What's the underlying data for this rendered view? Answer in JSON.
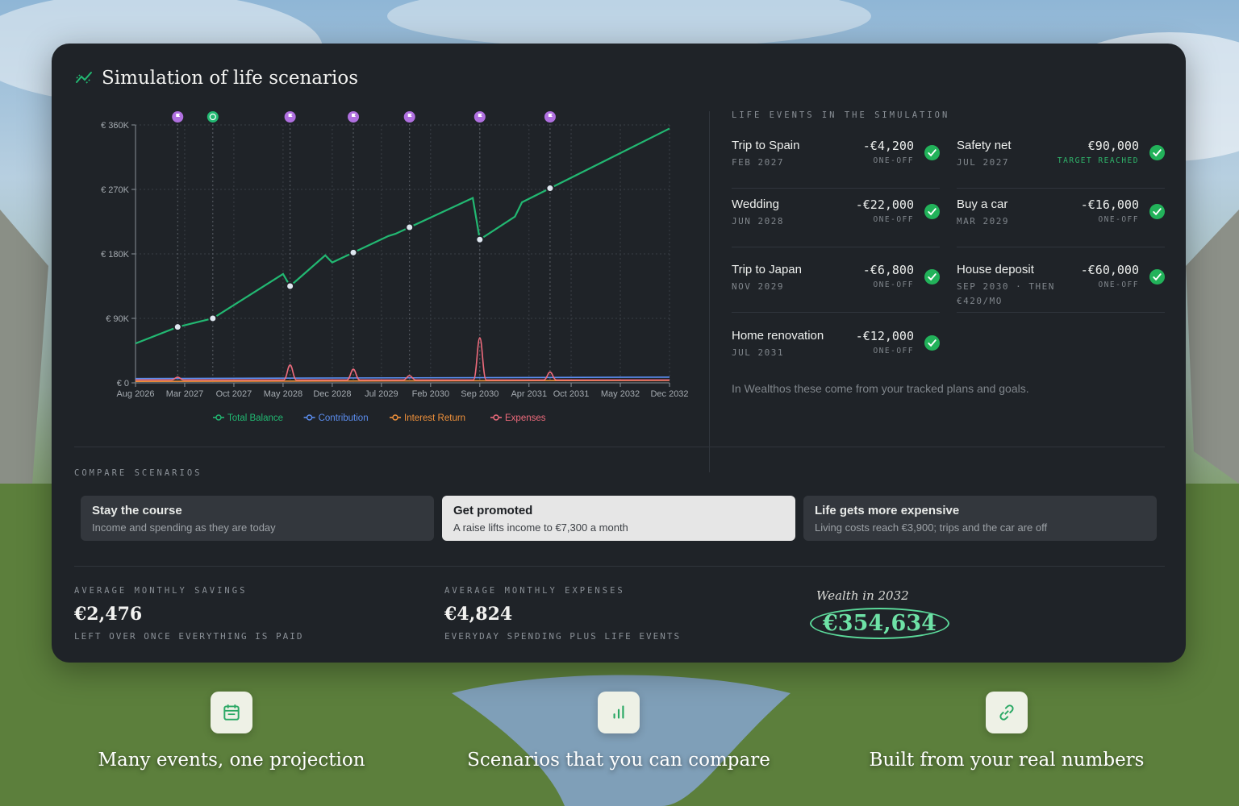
{
  "colors": {
    "total_balance": "#22b872",
    "contribution": "#5b8def",
    "interest_return": "#f0913a",
    "expenses": "#ef6b7c",
    "accent_green": "#22b25a",
    "marker_purple": "#b070e0"
  },
  "card": {
    "title": "Simulation of life scenarios",
    "title_icon": "trend-chart-icon"
  },
  "chart_data": {
    "type": "line",
    "x": [
      "Aug 2026",
      "Mar 2027",
      "Oct 2027",
      "May 2028",
      "Dec 2028",
      "Jul 2029",
      "Feb 2030",
      "Sep 2030",
      "Apr 2031",
      "Oct 2031",
      "May 2032",
      "Dec 2032"
    ],
    "ytick_labels": [
      "€ 360K",
      "€ 270K",
      "€ 180K",
      "€ 90K",
      "€ 0"
    ],
    "ylim": [
      0,
      360000
    ],
    "grid": true,
    "legend_position": "bottom",
    "series": [
      {
        "name": "Total Balance",
        "points": [
          [
            "Aug 2026",
            55000
          ],
          [
            "Feb 2027",
            78000
          ],
          [
            "Jul 2027",
            90000
          ],
          [
            "May 2028",
            152000
          ],
          [
            "Jun 2028",
            135000
          ],
          [
            "Nov 2028",
            178000
          ],
          [
            "Dec 2028",
            168000
          ],
          [
            "Aug 2029",
            205000
          ],
          [
            "Sep 2029",
            208000
          ],
          [
            "Aug 2030",
            258000
          ],
          [
            "Sep 2030",
            200000
          ],
          [
            "Feb 2031",
            232000
          ],
          [
            "Mar 2031",
            252000
          ],
          [
            "Dec 2032",
            355000
          ]
        ]
      },
      {
        "name": "Contribution",
        "points": [
          [
            "Aug 2026",
            6000
          ],
          [
            "Dec 2032",
            8000
          ]
        ]
      },
      {
        "name": "Interest Return",
        "points": [
          [
            "Aug 2026",
            2000
          ],
          [
            "Dec 2032",
            3500
          ]
        ]
      },
      {
        "name": "Expenses",
        "points": [
          [
            "Aug 2026",
            4000
          ],
          [
            "Feb 2027",
            8000
          ],
          [
            "Jun 2028",
            25000
          ],
          [
            "Mar 2029",
            19000
          ],
          [
            "Nov 2029",
            10000
          ],
          [
            "Sep 2030",
            63000
          ],
          [
            "Jul 2031",
            15000
          ],
          [
            "Dec 2032",
            4000
          ]
        ]
      }
    ],
    "event_markers": [
      {
        "date": "Feb 2027",
        "kind": "event"
      },
      {
        "date": "Jul 2027",
        "kind": "goal"
      },
      {
        "date": "Jun 2028",
        "kind": "event"
      },
      {
        "date": "Mar 2029",
        "kind": "event"
      },
      {
        "date": "Nov 2029",
        "kind": "event"
      },
      {
        "date": "Sep 2030",
        "kind": "event"
      },
      {
        "date": "Jul 2031",
        "kind": "event"
      }
    ]
  },
  "events": {
    "label": "LIFE EVENTS IN THE SIMULATION",
    "items": [
      {
        "name": "Trip to Spain",
        "date": "FEB 2027",
        "amount": "-€4,200",
        "note": "ONE-OFF",
        "note_green": false
      },
      {
        "name": "Safety net",
        "date": "JUL 2027",
        "amount": "€90,000",
        "note": "TARGET REACHED",
        "note_green": true
      },
      {
        "name": "Wedding",
        "date": "JUN 2028",
        "amount": "-€22,000",
        "note": "ONE-OFF",
        "note_green": false
      },
      {
        "name": "Buy a car",
        "date": "MAR 2029",
        "amount": "-€16,000",
        "note": "ONE-OFF",
        "note_green": false
      },
      {
        "name": "Trip to Japan",
        "date": "NOV 2029",
        "amount": "-€6,800",
        "note": "ONE-OFF",
        "note_green": false
      },
      {
        "name": "House deposit",
        "date": "SEP 2030 · THEN €420/MO",
        "amount": "-€60,000",
        "note": "ONE-OFF",
        "note_green": false
      },
      {
        "name": "Home renovation",
        "date": "JUL 2031",
        "amount": "-€12,000",
        "note": "ONE-OFF",
        "note_green": false
      }
    ],
    "footnote": "In Wealthos these come from your tracked plans and goals."
  },
  "scenarios": {
    "label": "COMPARE SCENARIOS",
    "items": [
      {
        "title": "Stay the course",
        "subtitle": "Income and spending as they are today",
        "active": false
      },
      {
        "title": "Get promoted",
        "subtitle": "A raise lifts income to €7,300 a month",
        "active": true
      },
      {
        "title": "Life gets more expensive",
        "subtitle": "Living costs reach €3,900; trips and the car are off",
        "active": false
      }
    ]
  },
  "stats": {
    "savings": {
      "label": "AVERAGE MONTHLY SAVINGS",
      "value": "€2,476",
      "sub": "LEFT OVER ONCE EVERYTHING IS PAID"
    },
    "expenses": {
      "label": "AVERAGE MONTHLY EXPENSES",
      "value": "€4,824",
      "sub": "EVERYDAY SPENDING PLUS LIFE EVENTS"
    },
    "wealth": {
      "label": "Wealth in 2032",
      "value": "€354,634"
    }
  },
  "features": [
    {
      "icon": "calendar-icon",
      "text": "Many events, one projection"
    },
    {
      "icon": "bar-chart-icon",
      "text": "Scenarios that you can compare"
    },
    {
      "icon": "link-icon",
      "text": "Built from your real numbers"
    }
  ]
}
